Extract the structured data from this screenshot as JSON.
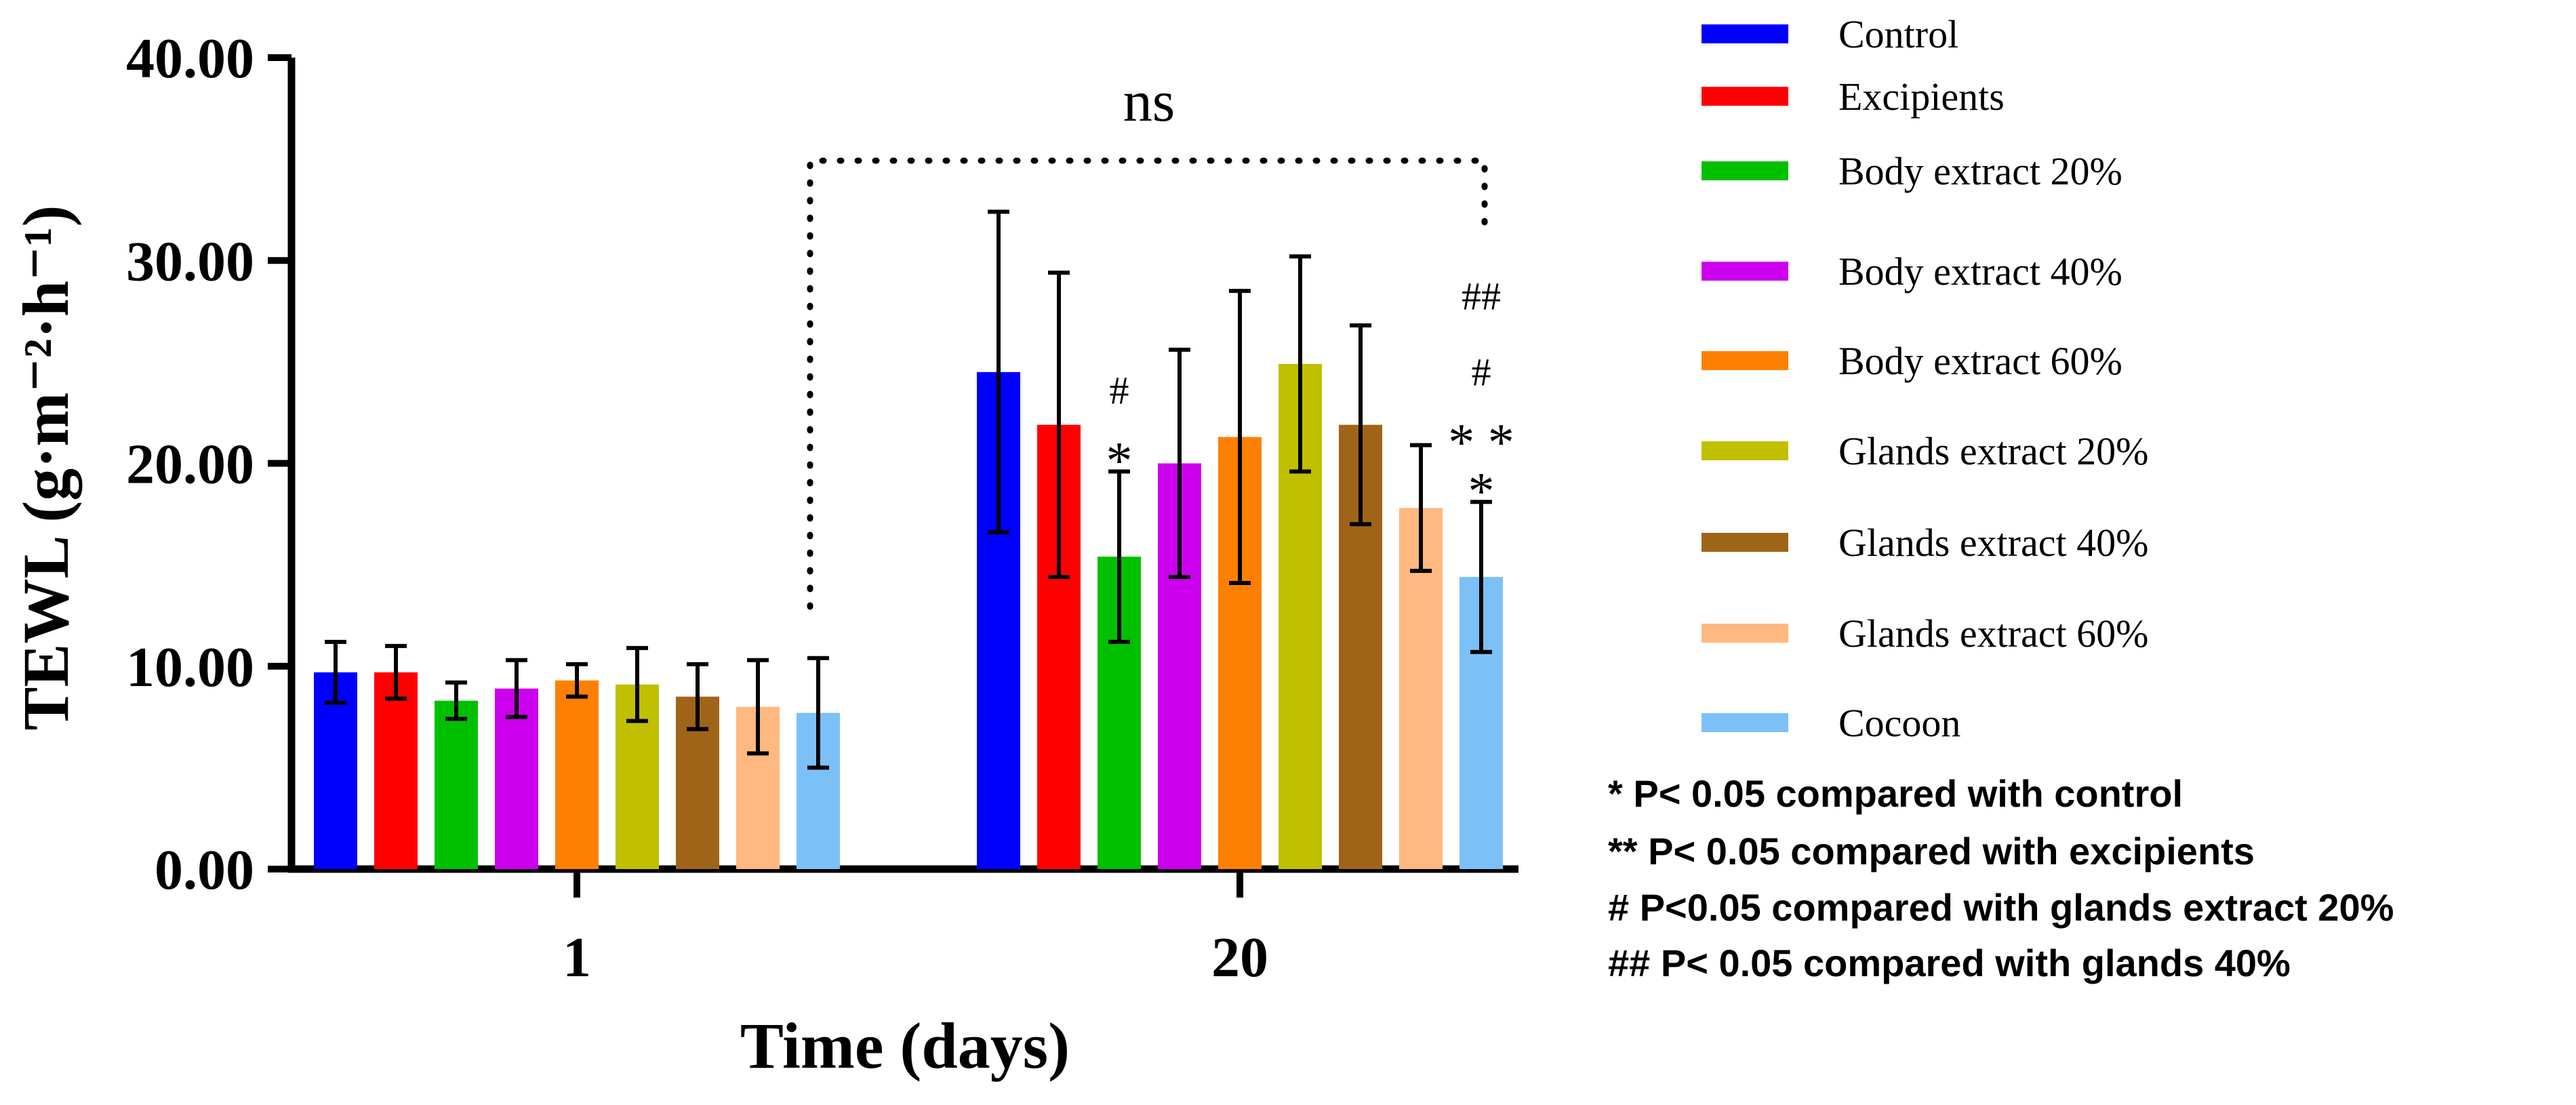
{
  "chart_data": {
    "type": "bar",
    "title": "",
    "xlabel": "Time (days)",
    "ylabel": "TEWL (g·m⁻²·h⁻¹)",
    "ylim": [
      0,
      40
    ],
    "yticks": [
      "0.00",
      "10.00",
      "20.00",
      "30.00",
      "40.00"
    ],
    "categories": [
      "1",
      "20"
    ],
    "series": [
      {
        "name": "Control",
        "color": "#0000ff",
        "values": [
          9.7,
          24.5
        ],
        "errors": [
          1.5,
          7.9
        ]
      },
      {
        "name": "Excipients",
        "color": "#ff0000",
        "values": [
          9.7,
          21.9
        ],
        "errors": [
          1.3,
          7.5
        ]
      },
      {
        "name": "Body extract 20%",
        "color": "#00c000",
        "values": [
          8.3,
          15.4
        ],
        "errors": [
          0.9,
          4.2
        ]
      },
      {
        "name": "Body extract 40%",
        "color": "#cc00ee",
        "values": [
          8.9,
          20.0
        ],
        "errors": [
          1.4,
          5.6
        ]
      },
      {
        "name": "Body extract 60%",
        "color": "#ff8000",
        "values": [
          9.3,
          21.3
        ],
        "errors": [
          0.8,
          7.2
        ]
      },
      {
        "name": "Glands extract 20%",
        "color": "#c0c000",
        "values": [
          9.1,
          24.9
        ],
        "errors": [
          1.8,
          5.3
        ]
      },
      {
        "name": "Glands extract 40%",
        "color": "#a06418",
        "values": [
          8.5,
          21.9
        ],
        "errors": [
          1.6,
          4.9
        ]
      },
      {
        "name": "Glands extract 60%",
        "color": "#ffb880",
        "values": [
          8.0,
          17.8
        ],
        "errors": [
          2.3,
          3.1
        ]
      },
      {
        "name": "Cocoon",
        "color": "#7cc0f8",
        "values": [
          7.7,
          14.4
        ],
        "errors": [
          2.7,
          3.7
        ]
      }
    ],
    "significance": {
      "bracket_label": "ns",
      "markers": [
        {
          "day": "20",
          "series": "Body extract 20%",
          "symbols": [
            "#",
            "*"
          ]
        },
        {
          "day": "20",
          "series": "Cocoon",
          "symbols": [
            "##",
            "#",
            "**",
            "*"
          ]
        }
      ]
    },
    "notes": [
      "* P< 0.05 compared with control",
      "** P< 0.05 compared with excipients",
      "# P<0.05 compared with glands extract 20%",
      "## P< 0.05 compared with glands 40%"
    ],
    "legend_position": "right"
  }
}
